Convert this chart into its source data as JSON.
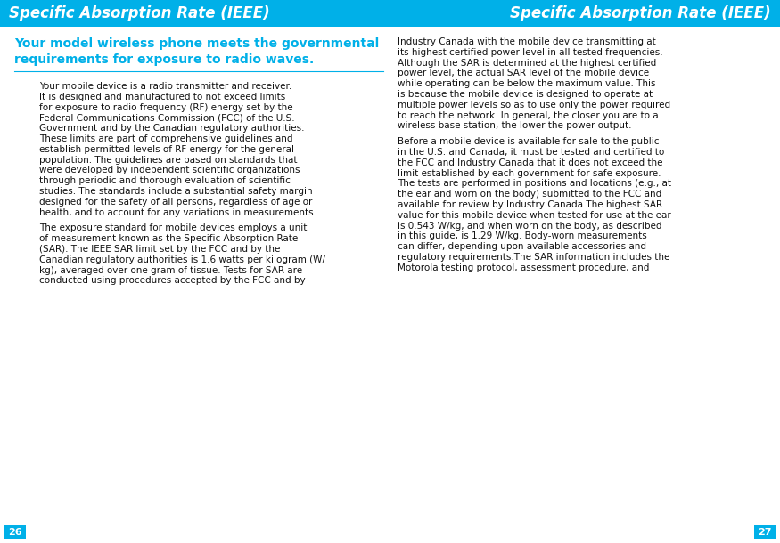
{
  "bg_color": "#ffffff",
  "header_bg": "#00b0e8",
  "header_text_color": "#ffffff",
  "header_text_left": "Specific Absorption Rate (IEEE)",
  "header_text_right": "Specific Absorption Rate (IEEE)",
  "header_font_size": 12,
  "subheader_lines": [
    "Your model wireless phone meets the governmental",
    "requirements for exposure to radio waves."
  ],
  "subheader_color": "#00b0e8",
  "subheader_font_size": 10,
  "body_font_size": 7.5,
  "body_color": "#111111",
  "page_num_left": "26",
  "page_num_right": "27",
  "page_num_bg": "#00b0e8",
  "page_num_color": "#ffffff",
  "left_col_lines": [
    "Your mobile device is a radio transmitter and receiver.",
    "It is designed and manufactured to not exceed limits",
    "for exposure to radio frequency (RF) energy set by the",
    "Federal Communications Commission (FCC) of the U.S.",
    "Government and by the Canadian regulatory authorities.",
    "These limits are part of comprehensive guidelines and",
    "establish permitted levels of RF energy for the general",
    "population. The guidelines are based on standards that",
    "were developed by independent scientific organizations",
    "through periodic and thorough evaluation of scientific",
    "studies. The standards include a substantial safety margin",
    "designed for the safety of all persons, regardless of age or",
    "health, and to account for any variations in measurements.",
    "",
    "The exposure standard for mobile devices employs a unit",
    "of measurement known as the Specific Absorption Rate",
    "(SAR). The IEEE SAR limit set by the FCC and by the",
    "Canadian regulatory authorities is 1.6 watts per kilogram (W/",
    "kg), averaged over one gram of tissue. Tests for SAR are",
    "conducted using procedures accepted by the FCC and by"
  ],
  "right_col_lines": [
    "Industry Canada with the mobile device transmitting at",
    "its highest certified power level in all tested frequencies.",
    "Although the SAR is determined at the highest certified",
    "power level, the actual SAR level of the mobile device",
    "while operating can be below the maximum value. This",
    "is because the mobile device is designed to operate at",
    "multiple power levels so as to use only the power required",
    "to reach the network. In general, the closer you are to a",
    "wireless base station, the lower the power output.",
    "",
    "Before a mobile device is available for sale to the public",
    "in the U.S. and Canada, it must be tested and certified to",
    "the FCC and Industry Canada that it does not exceed the",
    "limit established by each government for safe exposure.",
    "The tests are performed in positions and locations (e.g., at",
    "the ear and worn on the body) submitted to the FCC and",
    "available for review by Industry Canada.The highest SAR",
    "value for this mobile device when tested for use at the ear",
    "is 0.543 W/kg, and when worn on the body, as described",
    "in this guide, is 1.29 W/kg. Body-worn measurements",
    "can differ, depending upon available accessories and",
    "regulatory requirements.The SAR information includes the",
    "Motorola testing protocol, assessment procedure, and"
  ]
}
